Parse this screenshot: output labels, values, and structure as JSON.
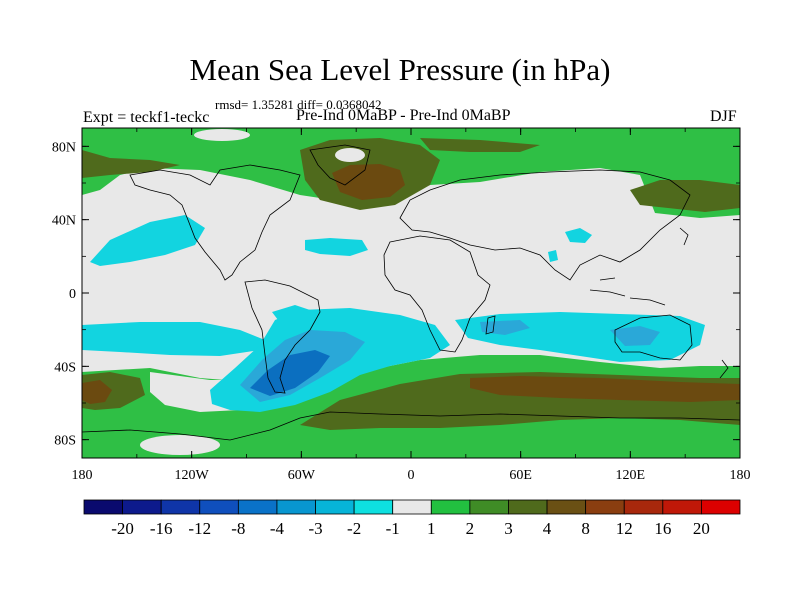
{
  "title": "Mean Sea Level Pressure (in hPa)",
  "stats_line": "rmsd= 1.35281 diff= 0.0368042",
  "left_label": "Expt = teckf1-teckc",
  "center_label": "Pre-Ind 0MaBP - Pre-Ind 0MaBP",
  "right_label": "DJF",
  "lat_ticks": [
    "80N",
    "40N",
    "0",
    "40S",
    "80S"
  ],
  "lat_values": [
    80,
    40,
    0,
    -40,
    -80
  ],
  "lon_ticks": [
    "180",
    "120W",
    "60W",
    "0",
    "60E",
    "120E",
    "180"
  ],
  "lon_values": [
    -180,
    -120,
    -60,
    0,
    60,
    120,
    180
  ],
  "colorbar": {
    "labels": [
      "-20",
      "-16",
      "-12",
      "-8",
      "-4",
      "-3",
      "-2",
      "-1",
      "1",
      "2",
      "3",
      "4",
      "8",
      "12",
      "16",
      "20"
    ],
    "colors": [
      "#0a0a6e",
      "#0d1a8c",
      "#0f35a8",
      "#0f4fbd",
      "#0a72c8",
      "#0896d0",
      "#06b4d8",
      "#0ee0e0",
      "#e8e8e8",
      "#22c040",
      "#3f8c26",
      "#4f6a1c",
      "#6a5014",
      "#8a3e10",
      "#a8280c",
      "#c01808",
      "#dc0000"
    ]
  },
  "map_colors": {
    "neutral": "#e8e8e8",
    "green": "#2fbf45",
    "dark_green": "#4f6a1c",
    "brown": "#6b4a10",
    "cyan": "#12d4e0",
    "light_blue": "#2aa8d8",
    "blue": "#0b6fc0"
  }
}
